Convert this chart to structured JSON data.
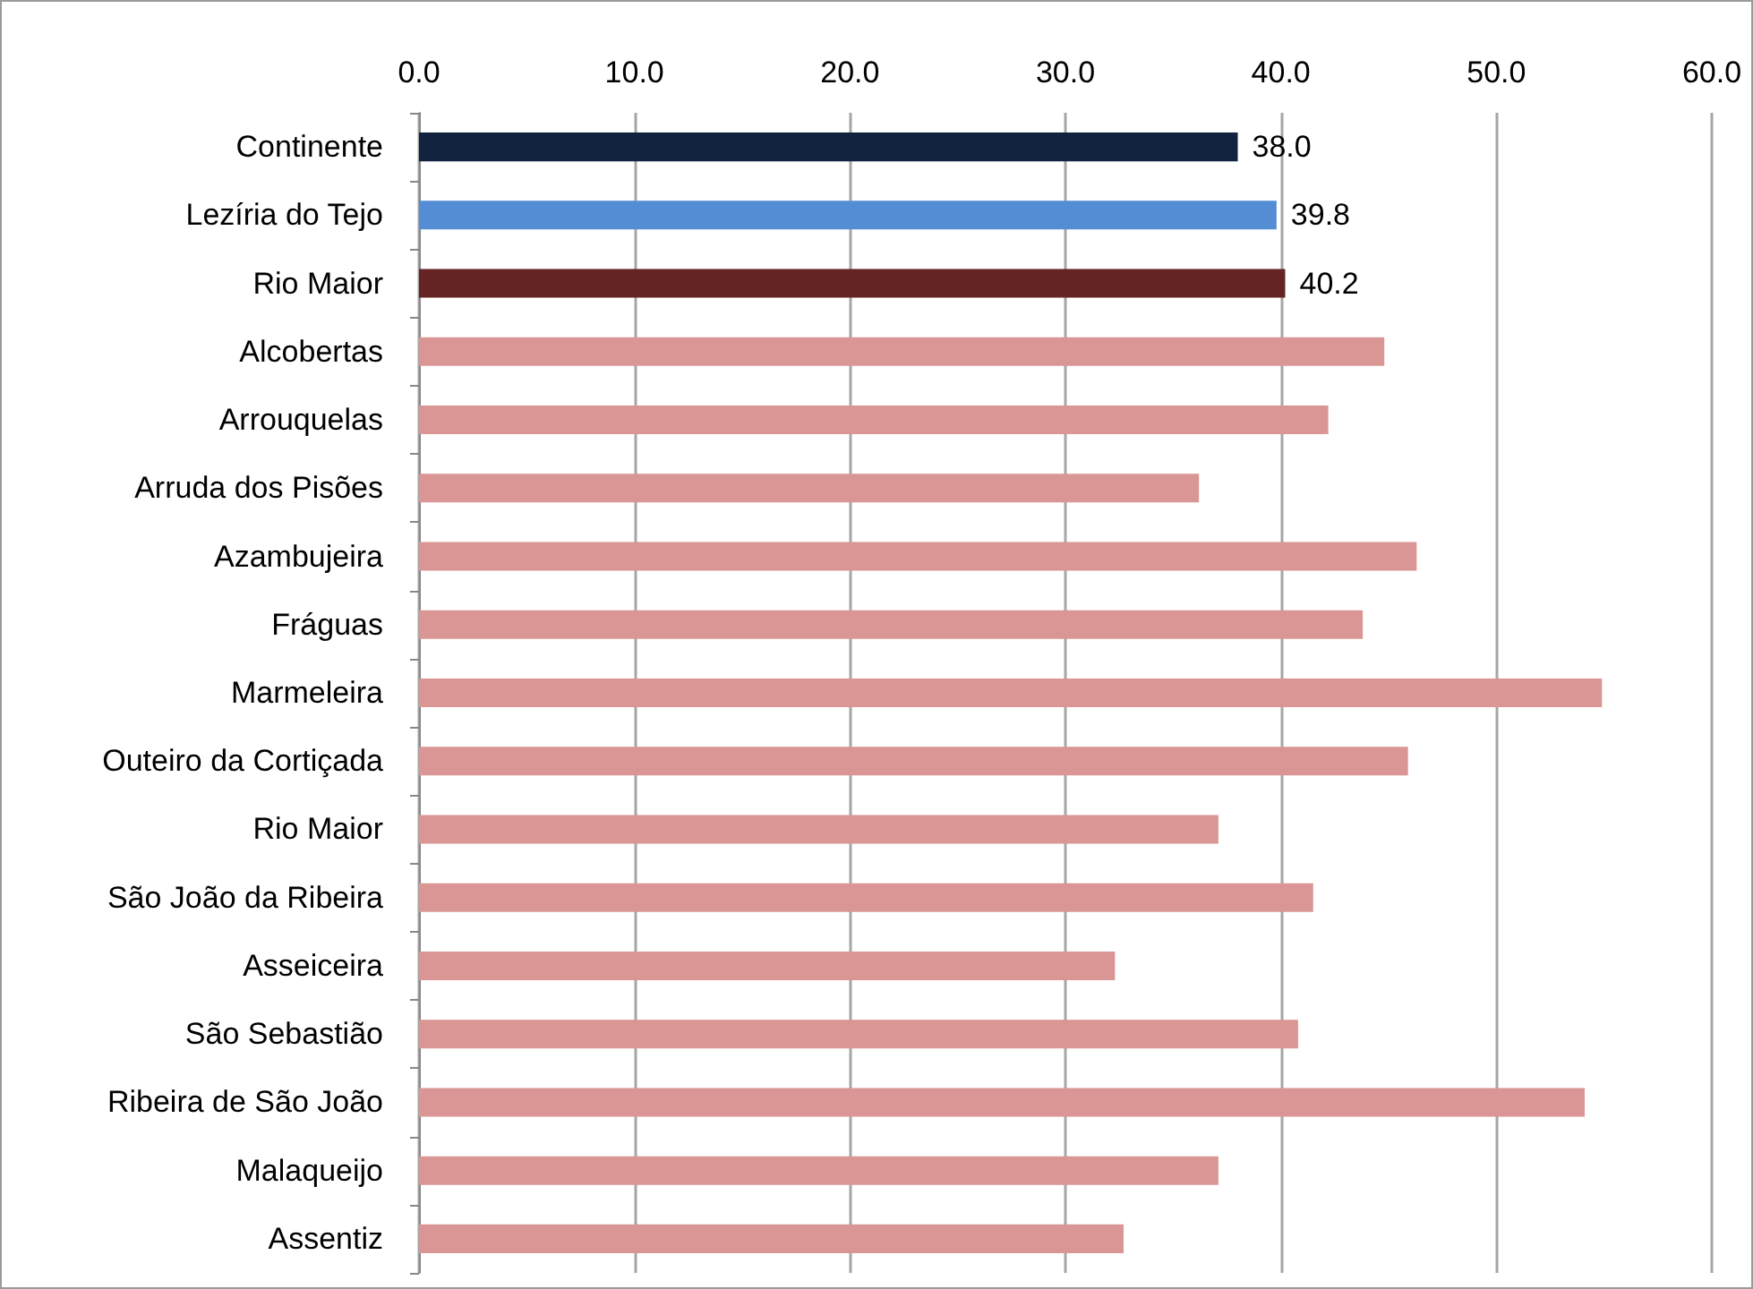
{
  "chart_data": {
    "type": "bar",
    "orientation": "horizontal",
    "categories": [
      "Continente",
      "Lezíria do Tejo",
      "Rio Maior",
      "Alcobertas",
      "Arrouquelas",
      "Arruda dos Pisões",
      "Azambujeira",
      "Fráguas",
      "Marmeleira",
      "Outeiro da Cortiçada",
      "Rio Maior",
      "São João da Ribeira",
      "Asseiceira",
      "São Sebastião",
      "Ribeira de São João",
      "Malaqueijo",
      "Assentiz"
    ],
    "values": [
      38.0,
      39.8,
      40.2,
      44.8,
      42.2,
      36.2,
      46.3,
      43.8,
      54.9,
      45.9,
      37.1,
      41.5,
      32.3,
      40.8,
      54.1,
      37.1,
      32.7
    ],
    "value_labels": [
      "38.0",
      "39.8",
      "40.2",
      null,
      null,
      null,
      null,
      null,
      null,
      null,
      null,
      null,
      null,
      null,
      null,
      null,
      null
    ],
    "colors": [
      "#12233f",
      "#548dd4",
      "#632423",
      "#d99694",
      "#d99694",
      "#d99694",
      "#d99694",
      "#d99694",
      "#d99694",
      "#d99694",
      "#d99694",
      "#d99694",
      "#d99694",
      "#d99694",
      "#d99694",
      "#d99694",
      "#d99694"
    ],
    "xlim": [
      0,
      60
    ],
    "xticks": [
      {
        "value": 0,
        "label": "0.0"
      },
      {
        "value": 10,
        "label": "10.0"
      },
      {
        "value": 20,
        "label": "20.0"
      },
      {
        "value": 30,
        "label": "30.0"
      },
      {
        "value": 40,
        "label": "40.0"
      },
      {
        "value": 50,
        "label": "50.0"
      },
      {
        "value": 60,
        "label": "60.0"
      }
    ],
    "grid": "x"
  }
}
